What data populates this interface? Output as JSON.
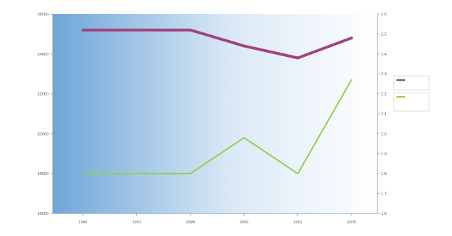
{
  "chart_data": {
    "type": "line",
    "x": [
      "1996",
      "1997",
      "1998",
      "2000",
      "2002",
      "2005"
    ],
    "xlabel": "",
    "ylabel_left": "",
    "ylabel_right": "",
    "ylim_left": [
      16000,
      26000
    ],
    "ylim_right": [
      1.6,
      2.6
    ],
    "left_ticks": [
      "26000",
      "24000",
      "22000",
      "20000",
      "18000",
      "16000"
    ],
    "right_ticks": [
      "2.6",
      "2.5",
      "2.4",
      "2.3",
      "2.2",
      "2.1",
      "2.0",
      "1.9",
      "1.8",
      "1.7",
      "1.6"
    ],
    "grid": false,
    "legend_position": "right",
    "series": [
      {
        "name": "",
        "axis": "left",
        "color": "#a0457e",
        "values": [
          25200,
          25200,
          25200,
          24400,
          23800,
          24800
        ]
      },
      {
        "name": "",
        "axis": "right",
        "color": "#8ed04c",
        "values": [
          1.8,
          1.8,
          1.8,
          1.98,
          1.8,
          2.27
        ]
      }
    ]
  }
}
